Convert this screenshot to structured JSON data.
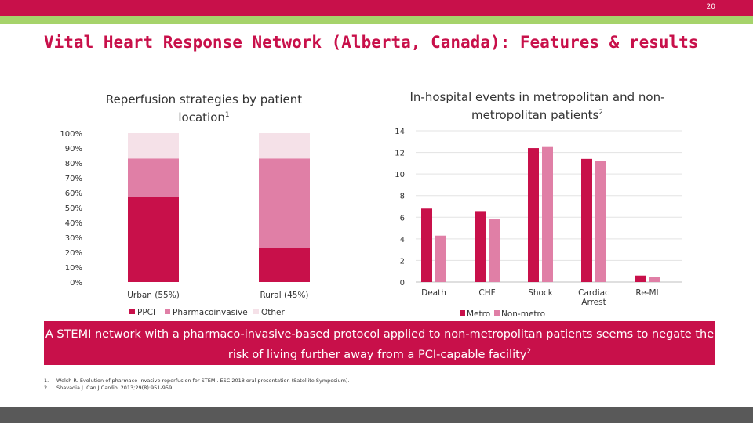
{
  "slide_number": "20",
  "title": "Vital Heart Response Network (Alberta, Canada): Features & results",
  "chart_data": [
    {
      "type": "bar",
      "stacked": true,
      "title": "Reperfusion strategies by patient location",
      "title_superscript": "1",
      "categories": [
        "Urban (55%)",
        "Rural (45%)"
      ],
      "series": [
        {
          "name": "PPCI",
          "values": [
            57,
            23
          ],
          "color": "#c8104a"
        },
        {
          "name": "Pharmacoinvasive",
          "values": [
            26,
            60
          ],
          "color": "#e07fa6"
        },
        {
          "name": "Other",
          "values": [
            17,
            17
          ],
          "color": "#f5e1e8"
        }
      ],
      "ylim": [
        0,
        100
      ],
      "yticks": [
        "0%",
        "10%",
        "20%",
        "30%",
        "40%",
        "50%",
        "60%",
        "70%",
        "80%",
        "90%",
        "100%"
      ],
      "legend_position": "bottom",
      "grid": false
    },
    {
      "type": "bar",
      "title": "In-hospital events in metropolitan and non-metropolitan patients",
      "title_superscript": "2",
      "categories": [
        "Death",
        "CHF",
        "Shock",
        "Cardiac Arrest",
        "Re-MI"
      ],
      "series": [
        {
          "name": "Metro",
          "values": [
            6.8,
            6.5,
            12.4,
            11.4,
            0.6
          ],
          "color": "#c8104a"
        },
        {
          "name": "Non-metro",
          "values": [
            4.3,
            5.8,
            12.5,
            11.2,
            0.5
          ],
          "color": "#e07fa6"
        }
      ],
      "ylim": [
        0,
        14
      ],
      "yticks": [
        "0",
        "2",
        "4",
        "6",
        "8",
        "10",
        "12",
        "14"
      ],
      "legend_position": "bottom",
      "grid": true
    }
  ],
  "banner": {
    "text": "A STEMI network with a pharmaco-invasive-based protocol applied to non-metropolitan patients seems to negate the risk of living further away from a PCI-capable facility",
    "superscript": "2"
  },
  "references": [
    {
      "num": "1.",
      "text": "Welsh R. Evolution of pharmaco-invasive reperfusion for STEMI. ESC 2018 oral presentation (Satellite Symposium)."
    },
    {
      "num": "2.",
      "text": "Shavadia J. Can J Cardiol 2013;29(8):951-959."
    }
  ]
}
